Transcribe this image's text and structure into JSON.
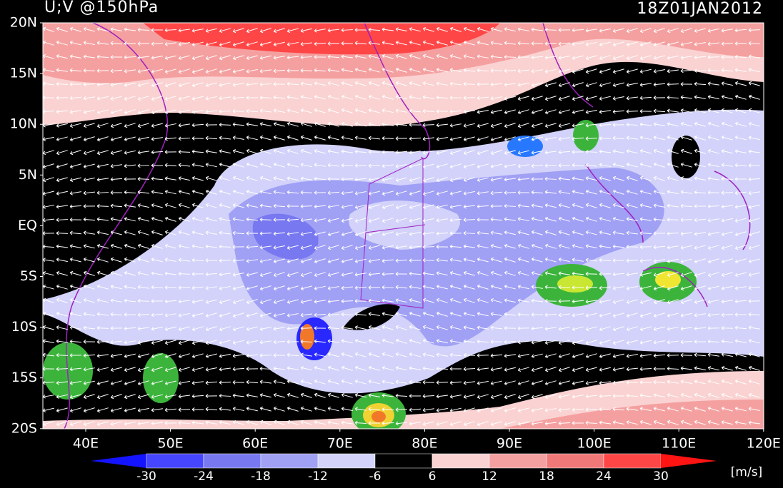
{
  "header": {
    "title": "U;V @150hPa",
    "time": "18Z01JAN2012"
  },
  "map": {
    "lat_labels": [
      "20N",
      "15N",
      "10N",
      "5N",
      "EQ",
      "5S",
      "10S",
      "15S",
      "20S"
    ],
    "lon_labels": [
      "40E",
      "50E",
      "60E",
      "70E",
      "80E",
      "90E",
      "100E",
      "110E",
      "120E"
    ]
  },
  "colorbar": {
    "ticks": [
      -30,
      -24,
      -18,
      -12,
      -6,
      6,
      12,
      18,
      24,
      30
    ],
    "colors": [
      "#1414ff",
      "#4646ff",
      "#7878f0",
      "#a0a0f5",
      "#d2d2fa",
      "#000000",
      "#fad2d2",
      "#f5a0a0",
      "#f07878",
      "#ff4646",
      "#ff1414"
    ],
    "unit": "[m/s]"
  }
}
